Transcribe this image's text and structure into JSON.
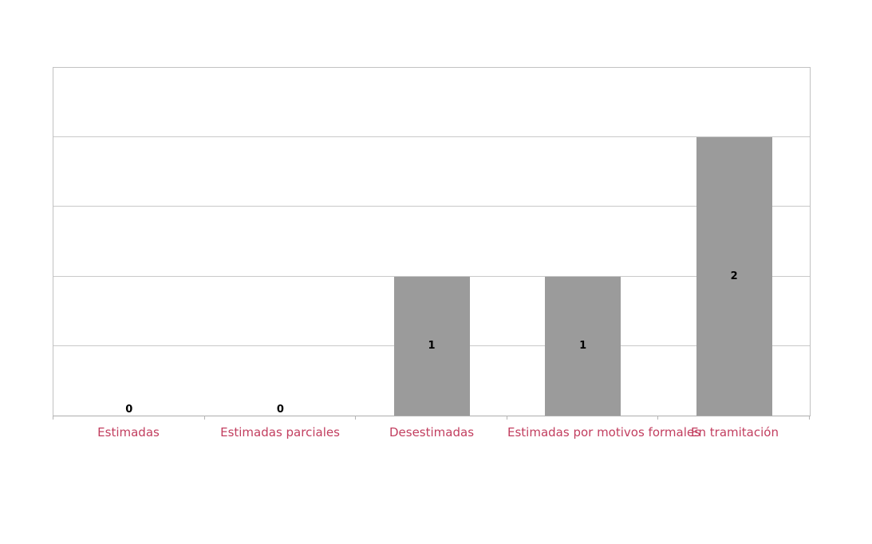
{
  "chart_data": {
    "type": "bar",
    "title": "",
    "xlabel": "",
    "ylabel": "",
    "categories": [
      "Estimadas",
      "Estimadas parciales",
      "Desestimadas",
      "Estimadas por motivos formales",
      "En tramitación"
    ],
    "values": [
      0,
      0,
      1,
      1,
      2
    ],
    "value_labels": [
      "0",
      "0",
      "1",
      "1",
      "2"
    ],
    "ylim": [
      0,
      2.5
    ],
    "gridline_step": 0.5,
    "grid": true,
    "y_axis_tick_labels_visible": false,
    "legend_position": "none",
    "bar_color": "#9b9b9b",
    "value_label_color": "#000000",
    "category_label_color": "#c23e5f",
    "gridline_color": "#c9c9c9",
    "border_color": "#c2c2c2",
    "axis_line_color": "#adadad",
    "tick_color": "#b5b5b5",
    "background_color": "#ffffff"
  }
}
